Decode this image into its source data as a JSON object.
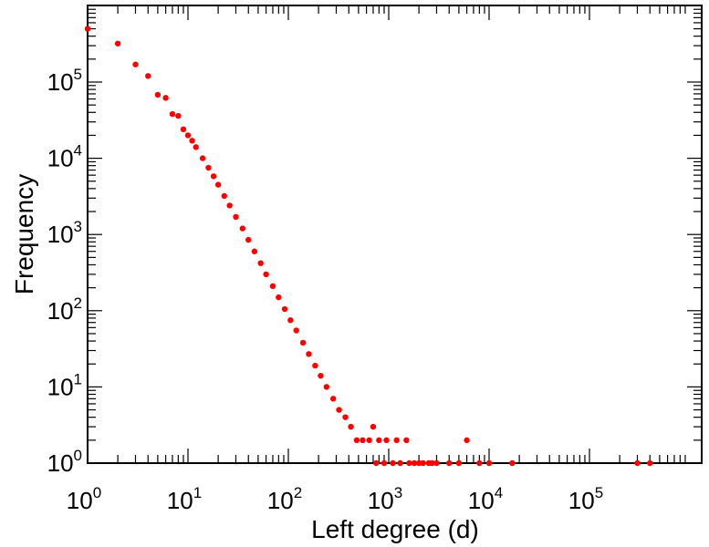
{
  "chart_data": {
    "type": "scatter",
    "title": "",
    "xlabel": "Left degree (d)",
    "ylabel": "Frequency",
    "xscale": "log",
    "yscale": "log",
    "xlim": [
      1,
      1000000
    ],
    "ylim": [
      1,
      1000000
    ],
    "grid": false,
    "legend": "none",
    "marker_color": "#ff0000",
    "x_ticks": [
      {
        "base": "10",
        "exp": "0",
        "value": 1
      },
      {
        "base": "10",
        "exp": "1",
        "value": 10
      },
      {
        "base": "10",
        "exp": "2",
        "value": 100
      },
      {
        "base": "10",
        "exp": "3",
        "value": 1000
      },
      {
        "base": "10",
        "exp": "4",
        "value": 10000
      },
      {
        "base": "10",
        "exp": "5",
        "value": 100000
      }
    ],
    "y_ticks": [
      {
        "base": "10",
        "exp": "0",
        "value": 1
      },
      {
        "base": "10",
        "exp": "1",
        "value": 10
      },
      {
        "base": "10",
        "exp": "2",
        "value": 100
      },
      {
        "base": "10",
        "exp": "3",
        "value": 1000
      },
      {
        "base": "10",
        "exp": "4",
        "value": 10000
      },
      {
        "base": "10",
        "exp": "5",
        "value": 100000
      }
    ],
    "series": [
      {
        "x": [
          1,
          2,
          3,
          4,
          5,
          6,
          7,
          8,
          9,
          10,
          11,
          12,
          14,
          16,
          18,
          20,
          23,
          26,
          30,
          35,
          40,
          46,
          53,
          60,
          70,
          80,
          92,
          105,
          120,
          140,
          160,
          185,
          210,
          240,
          280,
          320,
          370,
          420,
          480,
          550,
          640,
          750,
          900,
          1100,
          1300,
          1600,
          2000,
          2500,
          3000,
          4000,
          5000,
          6000,
          8000,
          10000,
          17000,
          300000,
          400000,
          700,
          800,
          950,
          1200,
          1500,
          1800,
          2200,
          2700
        ],
        "y": [
          500000,
          320000,
          170000,
          120000,
          68000,
          62000,
          38000,
          36000,
          24000,
          20000,
          17000,
          14000,
          10000,
          7500,
          5800,
          4500,
          3200,
          2400,
          1700,
          1200,
          850,
          600,
          420,
          300,
          210,
          150,
          105,
          75,
          55,
          38,
          27,
          19,
          14,
          10,
          7,
          5,
          4,
          3,
          2,
          2,
          2,
          1,
          1,
          1,
          1,
          1,
          1,
          1,
          1,
          1,
          1,
          2,
          1,
          1,
          1,
          1,
          1,
          3,
          2,
          2,
          2,
          2,
          1,
          1,
          1
        ]
      }
    ]
  }
}
